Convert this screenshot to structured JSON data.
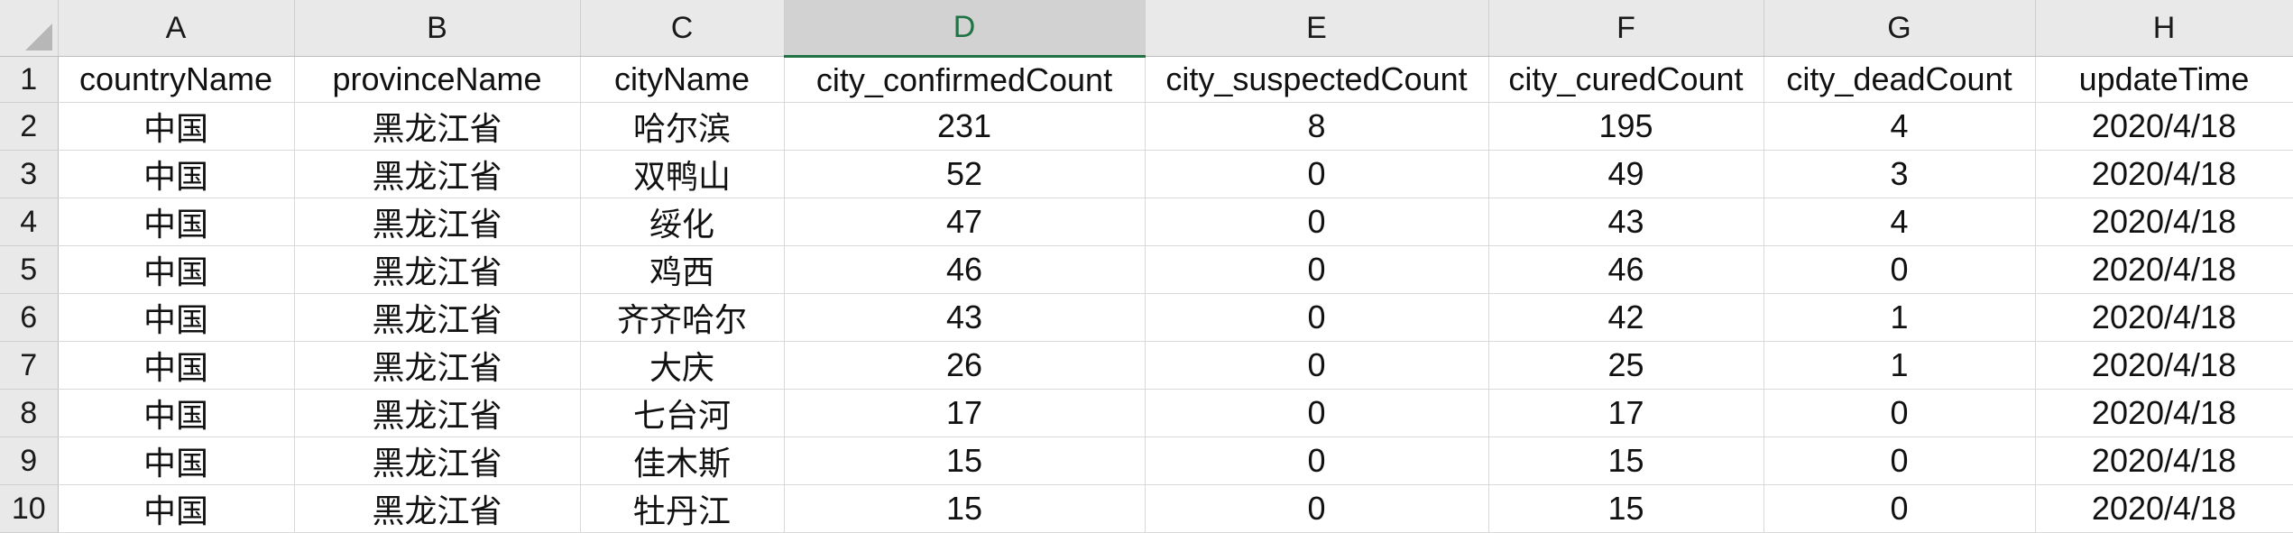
{
  "sheet": {
    "columns": [
      "A",
      "B",
      "C",
      "D",
      "E",
      "F",
      "G",
      "H"
    ],
    "selected_column": "D",
    "row_numbers": [
      "1",
      "2",
      "3",
      "4",
      "5",
      "6",
      "7",
      "8",
      "9",
      "10"
    ],
    "rows": [
      [
        "countryName",
        "provinceName",
        "cityName",
        "city_confirmedCount",
        "city_suspectedCount",
        "city_curedCount",
        "city_deadCount",
        "updateTime"
      ],
      [
        "中国",
        "黑龙江省",
        "哈尔滨",
        "231",
        "8",
        "195",
        "4",
        "2020/4/18"
      ],
      [
        "中国",
        "黑龙江省",
        "双鸭山",
        "52",
        "0",
        "49",
        "3",
        "2020/4/18"
      ],
      [
        "中国",
        "黑龙江省",
        "绥化",
        "47",
        "0",
        "43",
        "4",
        "2020/4/18"
      ],
      [
        "中国",
        "黑龙江省",
        "鸡西",
        "46",
        "0",
        "46",
        "0",
        "2020/4/18"
      ],
      [
        "中国",
        "黑龙江省",
        "齐齐哈尔",
        "43",
        "0",
        "42",
        "1",
        "2020/4/18"
      ],
      [
        "中国",
        "黑龙江省",
        "大庆",
        "26",
        "0",
        "25",
        "1",
        "2020/4/18"
      ],
      [
        "中国",
        "黑龙江省",
        "七台河",
        "17",
        "0",
        "17",
        "0",
        "2020/4/18"
      ],
      [
        "中国",
        "黑龙江省",
        "佳木斯",
        "15",
        "0",
        "15",
        "0",
        "2020/4/18"
      ],
      [
        "中国",
        "黑龙江省",
        "牡丹江",
        "15",
        "0",
        "15",
        "0",
        "2020/4/18"
      ]
    ]
  }
}
